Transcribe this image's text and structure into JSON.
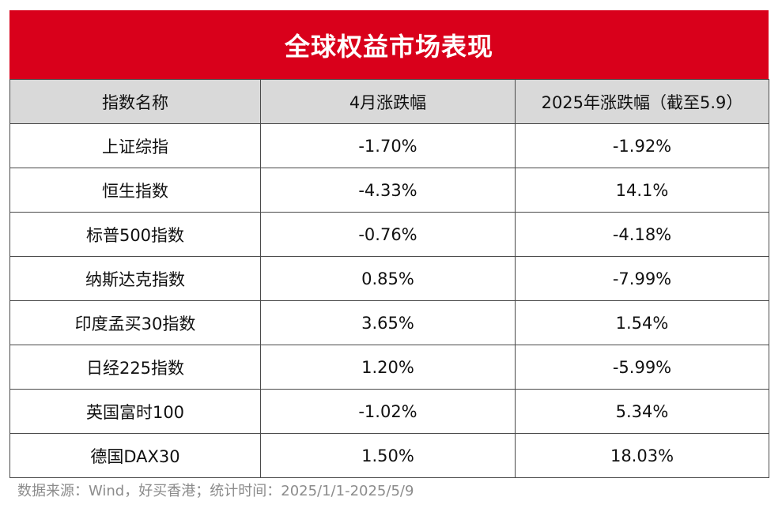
{
  "chart_data": {
    "type": "table",
    "title": "全球权益市场表现",
    "columns": [
      "指数名称",
      "4月涨跌幅",
      "2025年涨跌幅（截至5.9）"
    ],
    "rows": [
      [
        "上证综指",
        "-1.70%",
        "-1.92%"
      ],
      [
        "恒生指数",
        "-4.33%",
        "14.1%"
      ],
      [
        "标普500指数",
        "-0.76%",
        "-4.18%"
      ],
      [
        "纳斯达克指数",
        "0.85%",
        "-7.99%"
      ],
      [
        "印度孟买30指数",
        "3.65%",
        "1.54%"
      ],
      [
        "日经225指数",
        "1.20%",
        "-5.99%"
      ],
      [
        "英国富时100",
        "-1.02%",
        "5.34%"
      ],
      [
        "德国DAX30",
        "1.50%",
        "18.03%"
      ]
    ],
    "header_bg": "#d9d9d9",
    "title_bg": "#d9001b",
    "title_color": "#ffffff"
  },
  "source_note": "数据来源：Wind，好买香港；统计时间：2025/1/1-2025/5/9"
}
